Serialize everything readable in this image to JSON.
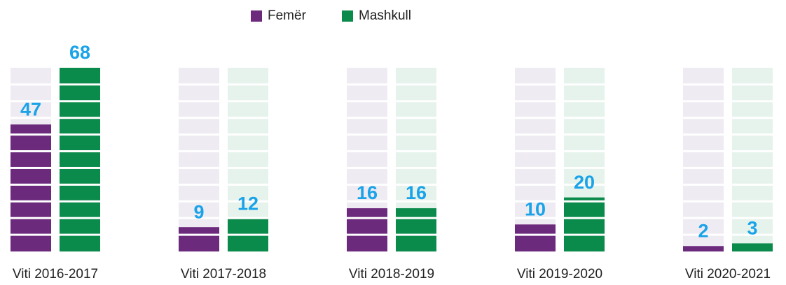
{
  "chart_data": {
    "type": "bar",
    "categories": [
      "Viti 2016-2017",
      "Viti 2017-2018",
      "Viti 2018-2019",
      "Viti 2019-2020",
      "Viti 2020-2021"
    ],
    "series": [
      {
        "name": "Femër",
        "color": "#6c2a7c",
        "track": "#efebf2",
        "values": [
          47,
          9,
          16,
          10,
          2
        ]
      },
      {
        "name": "Mashkull",
        "color": "#0a8a4b",
        "track": "#e6f3ec",
        "values": [
          68,
          12,
          16,
          20,
          3
        ]
      }
    ],
    "legend": "top"
  }
}
